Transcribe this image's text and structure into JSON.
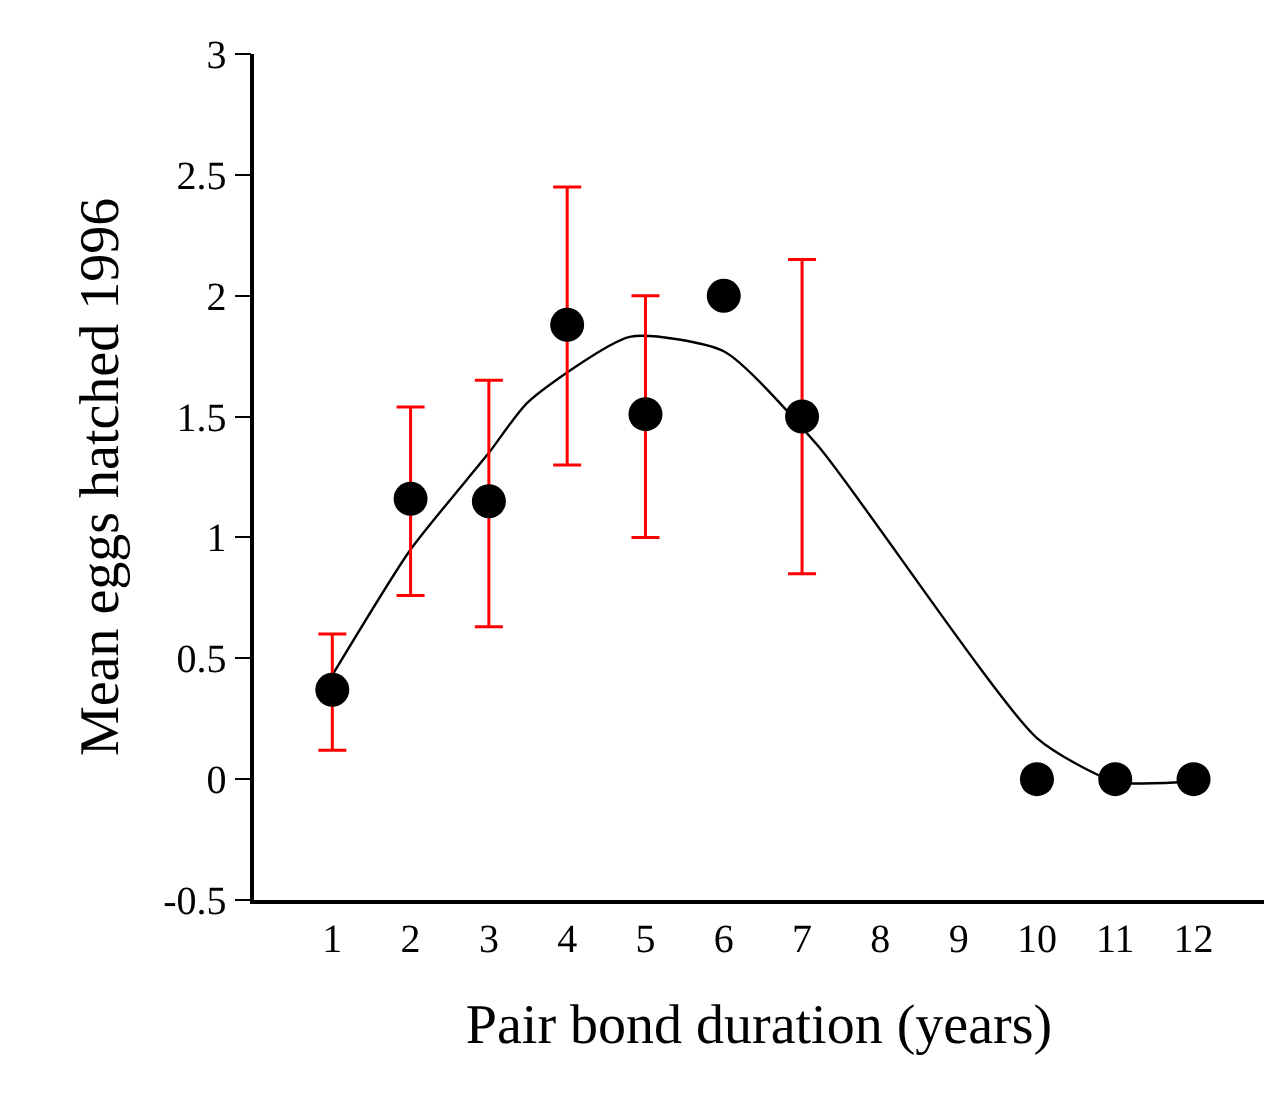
{
  "chart_data": {
    "type": "scatter",
    "xlabel": "Pair bond duration (years)",
    "ylabel": "Mean eggs hatched 1996",
    "x": [
      1,
      2,
      3,
      4,
      5,
      6,
      7,
      10,
      11,
      12
    ],
    "series": [
      {
        "color": "#000000",
        "values": [
          0.37,
          1.16,
          1.15,
          1.88,
          1.51,
          2.0,
          1.5,
          0,
          0,
          0
        ],
        "errors": [
          [
            0.12,
            0.6
          ],
          [
            0.76,
            1.54
          ],
          [
            0.63,
            1.65
          ],
          [
            1.3,
            2.45
          ],
          [
            1.0,
            2.0
          ],
          [
            2.0,
            2.0
          ],
          [
            0.85,
            2.15
          ],
          [
            0,
            0
          ],
          [
            0,
            0
          ],
          [
            0,
            0
          ]
        ],
        "marker": "circle"
      },
      {
        "type": "line",
        "color": "#000000",
        "x": [
          1,
          2,
          3,
          3.5,
          4.8,
          6,
          7.2,
          10,
          11,
          12
        ],
        "values": [
          0.43,
          0.95,
          1.35,
          1.56,
          1.83,
          1.77,
          1.38,
          0.17,
          -0.01,
          -0.01
        ],
        "marker": "none"
      }
    ],
    "xlim": [
      0,
      12.9
    ],
    "xticks": [
      1,
      2,
      3,
      4,
      5,
      6,
      7,
      8,
      9,
      10,
      11,
      12
    ],
    "ylim": [
      -0.5,
      3
    ],
    "yticks": [
      -0.5,
      0,
      0.5,
      1,
      1.5,
      2,
      2.5,
      3
    ],
    "grid": false
  }
}
